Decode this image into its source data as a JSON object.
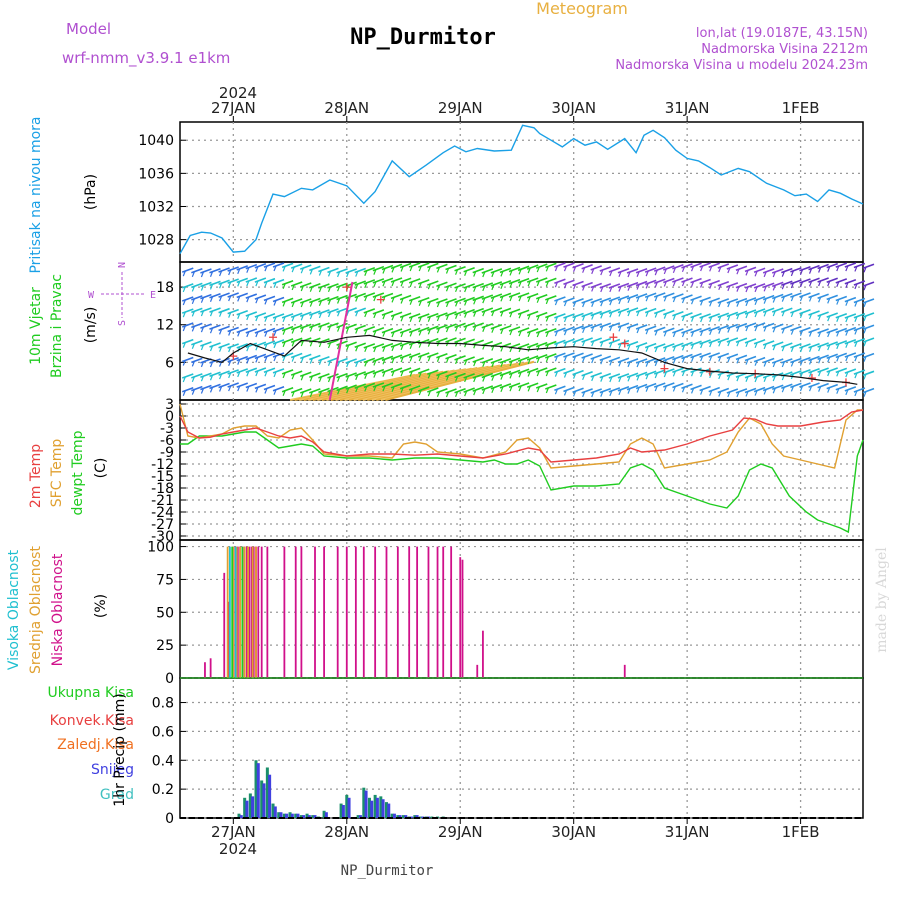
{
  "header": {
    "model_label": "Model",
    "model_name": "wrf-nmm_v3.9.1  e1km",
    "title": "NP_Durmitor",
    "meteogram": "Meteogram",
    "location": "lon,lat (19.0187E, 43.15N)",
    "elevation": "Nadmorska Visina 2212m",
    "model_elevation": "Nadmorska Visina u modelu 2024.23m",
    "footer_station": "NP_Durmitor",
    "credit": "made by Angel",
    "year": "2024",
    "dates": [
      "27JAN",
      "28JAN",
      "29JAN",
      "30JAN",
      "31JAN",
      "1FEB"
    ]
  },
  "colors": {
    "pressure": "#1aa0e6",
    "temp2m": "#e84040",
    "sfc": "#e0a030",
    "dewpt": "#20cc20",
    "visoka": "#20c0d0",
    "srednja": "#e0a030",
    "niska": "#d0108a",
    "ukupna": "#20cc20",
    "konvek": "#e84040",
    "zaledj": "#f07020",
    "snijeg": "#4040e0",
    "grad": "#40c0c0",
    "purple": "#b050d0",
    "gold": "#e8b040"
  },
  "chart_data": [
    {
      "type": "line",
      "panel": "pressure",
      "ylabel_colored": "Pritisak na nivou mora",
      "ylabel_unit": "(hPa)",
      "yticks": [
        "1028",
        "1032",
        "1036",
        "1040"
      ],
      "ylim": [
        1025.3,
        1042.2
      ],
      "xlim_days": [
        26.53,
        32.55
      ],
      "grid": true,
      "series": [
        {
          "key": "pressure",
          "x": [
            26.53,
            26.62,
            26.72,
            26.8,
            26.9,
            27.0,
            27.1,
            27.2,
            27.25,
            27.35,
            27.45,
            27.6,
            27.7,
            27.85,
            28.0,
            28.15,
            28.25,
            28.4,
            28.55,
            28.7,
            28.85,
            28.95,
            29.05,
            29.15,
            29.3,
            29.45,
            29.55,
            29.65,
            29.7,
            29.8,
            29.9,
            30.0,
            30.1,
            30.2,
            30.3,
            30.45,
            30.55,
            30.62,
            30.7,
            30.8,
            30.9,
            31.0,
            31.1,
            31.2,
            31.3,
            31.45,
            31.55,
            31.7,
            31.85,
            31.95,
            32.05,
            32.15,
            32.25,
            32.35,
            32.45,
            32.55
          ],
          "values": [
            1026.3,
            1028.5,
            1028.9,
            1028.8,
            1028.2,
            1026.5,
            1026.6,
            1028.0,
            1030.0,
            1033.5,
            1033.2,
            1034.2,
            1034.0,
            1035.2,
            1034.5,
            1032.4,
            1033.8,
            1037.5,
            1035.6,
            1037.0,
            1038.5,
            1039.3,
            1038.6,
            1039.0,
            1038.7,
            1038.8,
            1041.8,
            1041.5,
            1040.8,
            1040.0,
            1039.2,
            1040.2,
            1039.4,
            1039.8,
            1038.9,
            1040.2,
            1038.5,
            1040.6,
            1041.2,
            1040.3,
            1038.8,
            1037.8,
            1037.5,
            1036.7,
            1035.8,
            1036.6,
            1036.2,
            1034.8,
            1034.0,
            1033.3,
            1033.5,
            1032.6,
            1034.0,
            1033.6,
            1032.9,
            1032.3
          ]
        }
      ]
    },
    {
      "type": "line",
      "panel": "wind",
      "ylabel_colored": [
        "10m Vjetar",
        "Brzina i Pravac"
      ],
      "ylabel_unit": "(m/s)",
      "compass_n": "N",
      "compass_s": "S",
      "compass_e": "E",
      "compass_w": "W",
      "yticks": [
        "6",
        "12",
        "18"
      ],
      "ylim": [
        0,
        22
      ],
      "grid": true,
      "series": [
        {
          "key": "speed",
          "x": [
            26.6,
            26.75,
            26.9,
            27.0,
            27.15,
            27.3,
            27.45,
            27.6,
            27.8,
            28.0,
            28.2,
            28.4,
            28.6,
            28.8,
            29.0,
            29.2,
            29.4,
            29.6,
            29.8,
            30.0,
            30.2,
            30.4,
            30.6,
            30.8,
            31.0,
            31.2,
            31.4,
            31.6,
            31.8,
            32.0,
            32.2,
            32.4,
            32.5
          ],
          "values": [
            7.5,
            6.7,
            6.0,
            7.5,
            9.0,
            8.0,
            7.0,
            9.5,
            9.2,
            10.0,
            10.3,
            9.5,
            9.2,
            9.0,
            9.0,
            8.7,
            8.5,
            8.0,
            8.3,
            8.5,
            8.2,
            8.0,
            7.5,
            6.0,
            5.0,
            4.6,
            4.3,
            4.2,
            4.0,
            3.6,
            3.1,
            2.8,
            2.5
          ]
        }
      ]
    },
    {
      "type": "line",
      "panel": "temperature",
      "labels": [
        "2m Temp",
        "SFC Temp",
        "dewpt Temp"
      ],
      "ylabel_unit": "(C)",
      "yticks": [
        "3",
        "0",
        "-3",
        "-6",
        "-9",
        "-12",
        "-15",
        "-18",
        "-21",
        "-24",
        "-27",
        "-30"
      ],
      "ylim": [
        -31,
        4
      ],
      "grid": true,
      "series": [
        {
          "key": "temp2m",
          "name": "2m Temp",
          "x": [
            26.53,
            26.6,
            26.7,
            26.8,
            26.9,
            27.0,
            27.1,
            27.2,
            27.3,
            27.4,
            27.5,
            27.6,
            27.7,
            27.8,
            28.0,
            28.2,
            28.4,
            28.6,
            28.8,
            29.0,
            29.2,
            29.4,
            29.6,
            29.7,
            29.8,
            30.0,
            30.2,
            30.4,
            30.5,
            30.6,
            30.8,
            31.0,
            31.2,
            31.4,
            31.5,
            31.6,
            31.7,
            31.8,
            32.0,
            32.2,
            32.35,
            32.45,
            32.55
          ],
          "values": [
            0,
            -4,
            -5.5,
            -5.3,
            -4.5,
            -4,
            -3.5,
            -3,
            -4,
            -5,
            -5.5,
            -5,
            -6.5,
            -9,
            -10,
            -9.5,
            -9.5,
            -9.8,
            -9.5,
            -10,
            -10.5,
            -9.5,
            -8,
            -8.5,
            -11.5,
            -11,
            -10.5,
            -9.5,
            -8,
            -9,
            -8.5,
            -7,
            -5,
            -3.5,
            -0.5,
            -0.8,
            -2,
            -2.5,
            -2.5,
            -1.5,
            -1.0,
            1.0,
            1.5
          ]
        },
        {
          "key": "sfc",
          "name": "SFC Temp",
          "x": [
            26.53,
            26.6,
            26.7,
            26.8,
            26.9,
            27.0,
            27.1,
            27.2,
            27.3,
            27.4,
            27.5,
            27.6,
            27.7,
            27.8,
            28.0,
            28.2,
            28.4,
            28.5,
            28.6,
            28.7,
            28.8,
            29.0,
            29.2,
            29.4,
            29.5,
            29.6,
            29.7,
            29.8,
            30.0,
            30.2,
            30.4,
            30.5,
            30.6,
            30.7,
            30.8,
            31.0,
            31.2,
            31.35,
            31.45,
            31.55,
            31.65,
            31.75,
            31.85,
            32.0,
            32.15,
            32.3,
            32.4,
            32.5,
            32.55
          ],
          "values": [
            3,
            -5,
            -5.5,
            -5,
            -4.5,
            -3,
            -2.5,
            -2.5,
            -5,
            -5.5,
            -3.5,
            -3,
            -6,
            -9.5,
            -10,
            -10,
            -10.5,
            -7,
            -6.5,
            -7,
            -9,
            -9.5,
            -10.5,
            -9,
            -6,
            -5.5,
            -8,
            -13,
            -12.5,
            -12,
            -11.5,
            -7,
            -5.5,
            -7,
            -13,
            -12,
            -11,
            -9,
            -4,
            -0.5,
            -2,
            -7,
            -10,
            -11,
            -12,
            -13,
            -1,
            1.5,
            1.5
          ]
        },
        {
          "key": "dewpt",
          "name": "dewpt Temp",
          "x": [
            26.53,
            26.6,
            26.7,
            26.8,
            26.9,
            27.0,
            27.1,
            27.2,
            27.3,
            27.4,
            27.5,
            27.6,
            27.7,
            27.8,
            28.0,
            28.2,
            28.4,
            28.6,
            28.8,
            29.0,
            29.2,
            29.3,
            29.4,
            29.5,
            29.6,
            29.7,
            29.8,
            30.0,
            30.2,
            30.4,
            30.5,
            30.6,
            30.7,
            30.8,
            31.0,
            31.2,
            31.35,
            31.45,
            31.55,
            31.65,
            31.75,
            31.9,
            32.05,
            32.15,
            32.25,
            32.35,
            32.42,
            32.5,
            32.55
          ],
          "values": [
            -7,
            -7,
            -5,
            -5,
            -5,
            -4.5,
            -4,
            -4,
            -6,
            -8,
            -7.5,
            -7,
            -7.5,
            -10,
            -10.5,
            -10.5,
            -11,
            -10.5,
            -10.5,
            -11,
            -11.5,
            -11,
            -12,
            -12,
            -11,
            -12.5,
            -18.5,
            -17.5,
            -17.5,
            -17,
            -13,
            -12,
            -13.5,
            -18,
            -20,
            -22,
            -23,
            -20,
            -13.5,
            -12,
            -13,
            -20,
            -24,
            -26,
            -27,
            -28,
            -29,
            -10,
            -6
          ]
        }
      ]
    },
    {
      "type": "bar",
      "panel": "cloud",
      "labels": [
        "Visoka Oblacnost",
        "Srednja Oblacnost",
        "Niska Oblacnost"
      ],
      "ylabel_unit": "(%)",
      "yticks": [
        "0",
        "25",
        "50",
        "75",
        "100"
      ],
      "ylim": [
        0,
        105
      ],
      "grid": true,
      "series": [
        {
          "key": "niska",
          "x": [
            26.75,
            26.8,
            26.92,
            26.96,
            27.0,
            27.02,
            27.04,
            27.06,
            27.08,
            27.1,
            27.12,
            27.14,
            27.16,
            27.18,
            27.2,
            27.22,
            27.25,
            27.3,
            27.45,
            27.55,
            27.6,
            27.72,
            27.8,
            27.92,
            28.0,
            28.08,
            28.15,
            28.25,
            28.35,
            28.45,
            28.55,
            28.62,
            28.72,
            28.8,
            28.85,
            28.92,
            29.0,
            29.02,
            29.15,
            29.2,
            30.45
          ],
          "values": [
            12,
            15,
            80,
            58,
            100,
            100,
            100,
            100,
            100,
            100,
            100,
            100,
            100,
            100,
            100,
            100,
            100,
            100,
            100,
            100,
            100,
            100,
            100,
            100,
            100,
            100,
            100,
            100,
            100,
            100,
            100,
            100,
            100,
            100,
            100,
            100,
            92,
            90,
            10,
            36,
            10
          ]
        },
        {
          "key": "srednja",
          "x": [
            26.95,
            27.0,
            27.03,
            27.06,
            27.1,
            27.13,
            27.17,
            27.2
          ],
          "values": [
            100,
            100,
            100,
            100,
            100,
            100,
            100,
            100
          ]
        },
        {
          "key": "visoka",
          "x": [
            26.97,
            27.02
          ],
          "values": [
            100,
            100
          ]
        },
        {
          "key": "ukupna",
          "x": [
            26.99,
            27.08
          ],
          "values": [
            100,
            100
          ]
        }
      ]
    },
    {
      "type": "bar",
      "panel": "precip",
      "labels": [
        "Ukupna Kisa",
        "Konvek.Kisa",
        "Zaledj.Kisa",
        "Snijeg",
        "Grad"
      ],
      "ylabel": "1hr Precip (mm)",
      "yticks": [
        "0",
        "0.2",
        "0.4",
        "0.6",
        "0.8"
      ],
      "ylim": [
        0,
        0.97
      ],
      "grid": true,
      "series": [
        {
          "key": "ukupna",
          "x": [
            27.05,
            27.1,
            27.15,
            27.2,
            27.25,
            27.3,
            27.35,
            27.4,
            27.45,
            27.5,
            27.55,
            27.6,
            27.65,
            27.7,
            27.75,
            27.8,
            27.95,
            28.0,
            28.1,
            28.15,
            28.2,
            28.25,
            28.3,
            28.35,
            28.4,
            28.45,
            28.5,
            28.55,
            28.6,
            28.65,
            28.7,
            28.75,
            28.8,
            28.85
          ],
          "values": [
            0.03,
            0.14,
            0.17,
            0.4,
            0.26,
            0.35,
            0.1,
            0.04,
            0.03,
            0.04,
            0.03,
            0.02,
            0.03,
            0.02,
            0.01,
            0.05,
            0.1,
            0.16,
            0.02,
            0.21,
            0.14,
            0.16,
            0.15,
            0.11,
            0.03,
            0.02,
            0.02,
            0.01,
            0.02,
            0.01,
            0.01,
            0.01,
            0.01,
            0.01
          ]
        },
        {
          "key": "snijeg",
          "x": [
            27.07,
            27.12,
            27.17,
            27.22,
            27.27,
            27.32,
            27.37,
            27.42,
            27.47,
            27.52,
            27.57,
            27.62,
            27.67,
            27.72,
            27.82,
            27.97,
            28.02,
            28.12,
            28.17,
            28.22,
            28.27,
            28.32,
            28.37,
            28.42,
            28.47,
            28.52,
            28.57,
            28.62,
            28.67,
            28.72
          ],
          "values": [
            0.02,
            0.12,
            0.15,
            0.38,
            0.24,
            0.3,
            0.08,
            0.04,
            0.03,
            0.03,
            0.03,
            0.02,
            0.02,
            0.02,
            0.04,
            0.09,
            0.14,
            0.02,
            0.19,
            0.12,
            0.14,
            0.13,
            0.1,
            0.03,
            0.02,
            0.02,
            0.01,
            0.02,
            0.01,
            0.01
          ]
        }
      ]
    }
  ]
}
